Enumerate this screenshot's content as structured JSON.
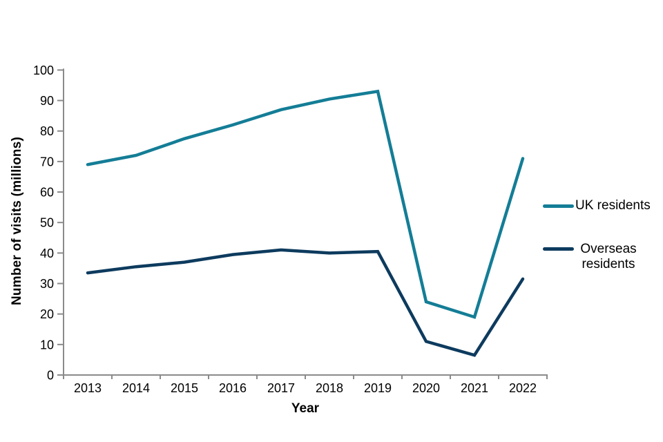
{
  "chart_data": {
    "type": "line",
    "xlabel": "Year",
    "ylabel": "Number of visits (millions)",
    "x": [
      "2013",
      "2014",
      "2015",
      "2016",
      "2017",
      "2018",
      "2019",
      "2020",
      "2021",
      "2022"
    ],
    "series": [
      {
        "name": "UK residents",
        "color": "#147d96",
        "values": [
          69,
          72,
          77.5,
          82,
          87,
          90.5,
          93,
          24,
          19,
          71
        ]
      },
      {
        "name": "Overseas residents",
        "color": "#0d3b5e",
        "values": [
          33.5,
          35.5,
          37,
          39.5,
          41,
          40,
          40.5,
          11,
          6.5,
          31.5
        ]
      }
    ],
    "ylim": [
      0,
      100
    ],
    "y_ticks": [
      0,
      10,
      20,
      30,
      40,
      50,
      60,
      70,
      80,
      90,
      100
    ],
    "grid": false,
    "legend_position": "right",
    "axis_color": "#8a8a8a",
    "text_color": "#000000"
  }
}
